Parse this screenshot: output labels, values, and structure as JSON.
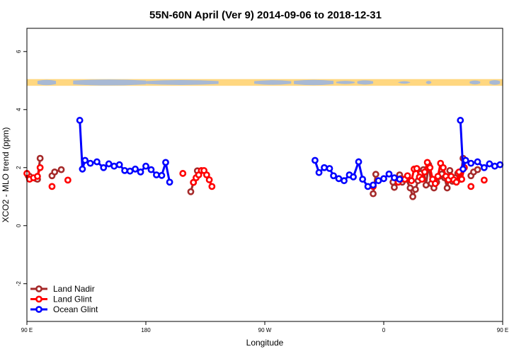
{
  "chart_data": {
    "type": "line",
    "title": "55N-60N April (Ver 9)   2014-09-06 to 2018-12-31",
    "xlabel": "Longitude",
    "ylabel": "XCO2 - MLO trend (ppm)",
    "xlim": [
      90,
      450
    ],
    "ylim": [
      -3.3,
      6.8
    ],
    "xticks": [
      {
        "value": 90,
        "label": "90 E"
      },
      {
        "value": 180,
        "label": "180"
      },
      {
        "value": 270,
        "label": "90 W"
      },
      {
        "value": 360,
        "label": "0"
      },
      {
        "value": 450,
        "label": "90 E"
      }
    ],
    "yticks": [
      {
        "value": -2,
        "label": "-2"
      },
      {
        "value": 0,
        "label": "0"
      },
      {
        "value": 2,
        "label": "2"
      },
      {
        "value": 4,
        "label": "4"
      },
      {
        "value": 6,
        "label": "6"
      }
    ],
    "grid": false,
    "legend_position": "bottom-left",
    "map_strip": {
      "ymin": 4.82,
      "ymax": 5.05,
      "ocean_color": "#a8b9d4",
      "land_color": "#ffd780"
    },
    "series": [
      {
        "name": "Land Nadir",
        "color": "#a52a2a",
        "segments": [
          [
            [
              91,
              1.72
            ],
            [
              92,
              1.7
            ],
            [
              97,
              1.62
            ],
            [
              98,
              1.6
            ],
            [
              100,
              2.32
            ]
          ],
          [
            [
              109,
              1.72
            ],
            [
              111,
              1.85
            ],
            [
              116,
              1.93
            ]
          ],
          [
            [
              214,
              1.17
            ],
            [
              216,
              1.49
            ],
            [
              219,
              1.89
            ]
          ],
          [
            [
              352,
              1.1
            ],
            [
              354,
              1.77
            ]
          ],
          [
            [
              367,
              1.5
            ],
            [
              368,
              1.32
            ],
            [
              370,
              1.63
            ],
            [
              372,
              1.75
            ],
            [
              373,
              1.62
            ],
            [
              374,
              1.5
            ],
            [
              375,
              1.6
            ],
            [
              377,
              1.6
            ],
            [
              380,
              1.3
            ],
            [
              382,
              1.0
            ],
            [
              384,
              1.25
            ],
            [
              386,
              1.55
            ],
            [
              388,
              1.8
            ],
            [
              390,
              1.93
            ],
            [
              392,
              1.4
            ],
            [
              394,
              2.1
            ],
            [
              396,
              1.45
            ],
            [
              398,
              1.3
            ],
            [
              400,
              1.5
            ],
            [
              402,
              1.7
            ],
            [
              404,
              1.78
            ],
            [
              406,
              1.65
            ],
            [
              408,
              1.3
            ],
            [
              410,
              1.9
            ],
            [
              412,
              1.53
            ],
            [
              414,
              1.65
            ],
            [
              416,
              1.8
            ],
            [
              418,
              1.6
            ],
            [
              420,
              2.32
            ]
          ],
          [
            [
              426,
              1.72
            ],
            [
              428,
              1.85
            ],
            [
              431,
              1.93
            ]
          ]
        ]
      },
      {
        "name": "Land Glint",
        "color": "#ff0000",
        "segments": [
          [
            [
              90,
              1.8
            ],
            [
              92,
              1.6
            ],
            [
              95,
              1.65
            ],
            [
              98,
              1.7
            ],
            [
              100,
              2.0
            ]
          ],
          [
            [
              109,
              1.35
            ]
          ],
          [
            [
              121,
              1.57
            ]
          ],
          [
            [
              208,
              1.8
            ]
          ],
          [
            [
              216,
              1.49
            ],
            [
              218,
              1.65
            ],
            [
              220,
              1.75
            ],
            [
              222,
              1.9
            ],
            [
              224,
              1.9
            ],
            [
              226,
              1.75
            ],
            [
              228,
              1.58
            ],
            [
              230,
              1.35
            ]
          ],
          [
            [
              352,
              1.35
            ]
          ],
          [
            [
              371,
              1.5
            ],
            [
              373,
              1.6
            ],
            [
              376,
              1.6
            ],
            [
              378,
              1.72
            ],
            [
              381,
              1.55
            ],
            [
              383,
              1.95
            ],
            [
              385,
              1.97
            ],
            [
              387,
              1.68
            ],
            [
              389,
              1.6
            ],
            [
              391,
              1.85
            ],
            [
              393,
              2.18
            ],
            [
              395,
              2.0
            ],
            [
              397,
              1.6
            ],
            [
              399,
              1.45
            ],
            [
              401,
              1.7
            ],
            [
              403,
              2.15
            ],
            [
              405,
              2.0
            ],
            [
              407,
              1.7
            ],
            [
              409,
              1.58
            ],
            [
              411,
              1.7
            ],
            [
              413,
              1.58
            ],
            [
              415,
              1.5
            ],
            [
              417,
              1.85
            ],
            [
              419,
              1.6
            ],
            [
              421,
              2.0
            ]
          ],
          [
            [
              426,
              1.35
            ]
          ],
          [
            [
              436,
              1.57
            ]
          ]
        ]
      },
      {
        "name": "Ocean Glint",
        "color": "#0000ff",
        "segments": [
          [
            [
              130,
              3.63
            ],
            [
              132,
              1.95
            ],
            [
              134,
              2.25
            ],
            [
              138,
              2.15
            ],
            [
              143,
              2.2
            ],
            [
              148,
              2.0
            ],
            [
              152,
              2.13
            ],
            [
              156,
              2.05
            ],
            [
              160,
              2.1
            ],
            [
              164,
              1.9
            ],
            [
              168,
              1.88
            ],
            [
              172,
              1.95
            ],
            [
              176,
              1.85
            ],
            [
              180,
              2.05
            ],
            [
              184,
              1.93
            ],
            [
              188,
              1.75
            ],
            [
              192,
              1.73
            ],
            [
              195,
              2.18
            ],
            [
              198,
              1.5
            ]
          ],
          [
            [
              308,
              2.25
            ],
            [
              311,
              1.83
            ],
            [
              315,
              2.0
            ],
            [
              319,
              1.97
            ],
            [
              322,
              1.72
            ],
            [
              326,
              1.62
            ],
            [
              330,
              1.55
            ],
            [
              334,
              1.75
            ],
            [
              337,
              1.68
            ],
            [
              341,
              2.2
            ],
            [
              344,
              1.6
            ],
            [
              348,
              1.35
            ],
            [
              352,
              1.4
            ],
            [
              356,
              1.55
            ],
            [
              360,
              1.62
            ],
            [
              364,
              1.78
            ],
            [
              368,
              1.65
            ],
            [
              372,
              1.6
            ]
          ],
          [
            [
              418,
              3.63
            ],
            [
              420,
              1.95
            ],
            [
              422,
              2.25
            ],
            [
              426,
              2.15
            ],
            [
              431,
              2.2
            ],
            [
              436,
              2.0
            ],
            [
              440,
              2.13
            ],
            [
              444,
              2.05
            ],
            [
              448,
              2.1
            ]
          ]
        ]
      }
    ]
  }
}
